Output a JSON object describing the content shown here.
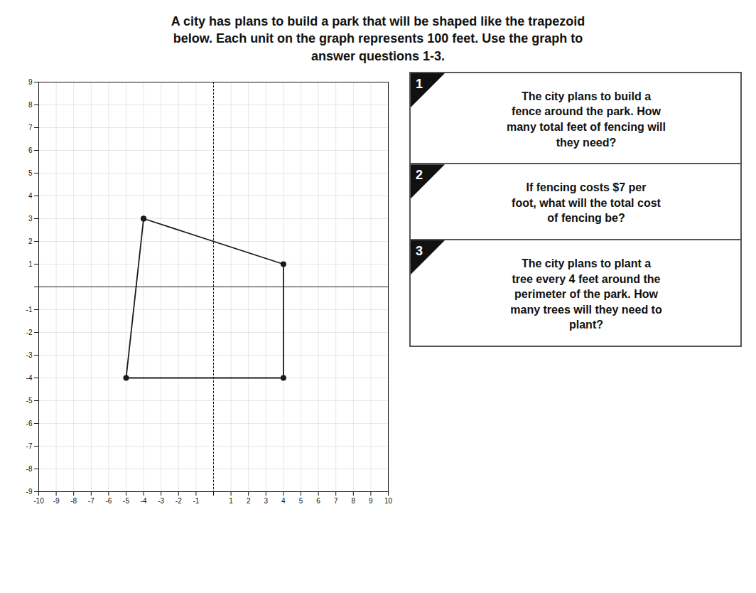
{
  "chart_data": {
    "type": "line",
    "title": "A city has plans to build a park that will be shaped like the trapezoid\nbelow. Each unit on the graph represents 100 feet. Use the graph to\nanswer questions 1-3.",
    "x": [
      -4,
      4,
      4,
      -5,
      -4
    ],
    "values": [
      3,
      1,
      -4,
      -4,
      3
    ],
    "color": "#1a1a1a",
    "marker": "circle",
    "line_style": "solid",
    "xlim": [
      -10,
      10
    ],
    "ylim": [
      -9,
      9
    ],
    "xticks": [
      -10,
      -9,
      -8,
      -7,
      -6,
      -5,
      -4,
      -3,
      -2,
      -1,
      {
        "value": 0,
        "label": ""
      },
      1,
      2,
      3,
      4,
      5,
      6,
      7,
      8,
      9,
      10
    ],
    "yticks": [
      -9,
      -8,
      -7,
      -6,
      -5,
      -4,
      -3,
      -2,
      -1,
      {
        "value": 0,
        "label": ""
      },
      1,
      2,
      3,
      4,
      5,
      6,
      7,
      8,
      9
    ],
    "grid": true,
    "annotations": [
      {
        "number": "1",
        "text": "The city plans to build a\nfence around the park. How\nmany total feet of fencing will\nthey need?"
      },
      {
        "number": "2",
        "text": "If fencing costs $7 per\nfoot, what will the total cost\nof fencing be?"
      },
      {
        "number": "3",
        "text": "The city plans to plant a\ntree every 4 feet around the\nperimeter of the park. How\nmany trees will they need to\nplant?"
      }
    ]
  }
}
